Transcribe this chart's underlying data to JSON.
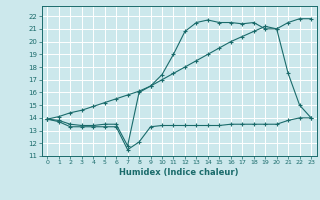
{
  "xlabel": "Humidex (Indice chaleur)",
  "bg_color": "#cce8ec",
  "grid_color": "#ffffff",
  "line_color": "#1a6b6b",
  "xlim": [
    -0.5,
    23.5
  ],
  "ylim": [
    11,
    22.8
  ],
  "xticks": [
    0,
    1,
    2,
    3,
    4,
    5,
    6,
    7,
    8,
    9,
    10,
    11,
    12,
    13,
    14,
    15,
    16,
    17,
    18,
    19,
    20,
    21,
    22,
    23
  ],
  "yticks": [
    11,
    12,
    13,
    14,
    15,
    16,
    17,
    18,
    19,
    20,
    21,
    22
  ],
  "line1_x": [
    0,
    1,
    2,
    3,
    4,
    5,
    6,
    7,
    8,
    9,
    10,
    11,
    12,
    13,
    14,
    15,
    16,
    17,
    18,
    19,
    20,
    21,
    22,
    23
  ],
  "line1_y": [
    13.9,
    13.7,
    13.3,
    13.3,
    13.3,
    13.3,
    13.3,
    11.5,
    12.1,
    13.3,
    13.4,
    13.4,
    13.4,
    13.4,
    13.4,
    13.4,
    13.5,
    13.5,
    13.5,
    13.5,
    13.5,
    13.8,
    14.0,
    14.0
  ],
  "line2_x": [
    0,
    1,
    2,
    3,
    4,
    5,
    6,
    7,
    8,
    9,
    10,
    11,
    12,
    13,
    14,
    15,
    16,
    17,
    18,
    19,
    20,
    21,
    22,
    23
  ],
  "line2_y": [
    13.9,
    13.8,
    13.5,
    13.4,
    13.4,
    13.5,
    13.5,
    11.8,
    16.0,
    16.5,
    17.4,
    19.0,
    20.8,
    21.5,
    21.7,
    21.5,
    21.5,
    21.4,
    21.5,
    21.0,
    21.0,
    17.5,
    15.0,
    14.0
  ],
  "line3_x": [
    0,
    1,
    2,
    3,
    4,
    5,
    6,
    7,
    8,
    9,
    10,
    11,
    12,
    13,
    14,
    15,
    16,
    17,
    18,
    19,
    20,
    21,
    22,
    23
  ],
  "line3_y": [
    13.9,
    14.1,
    14.4,
    14.6,
    14.9,
    15.2,
    15.5,
    15.8,
    16.1,
    16.5,
    17.0,
    17.5,
    18.0,
    18.5,
    19.0,
    19.5,
    20.0,
    20.4,
    20.8,
    21.2,
    21.0,
    21.5,
    21.8,
    21.8
  ]
}
